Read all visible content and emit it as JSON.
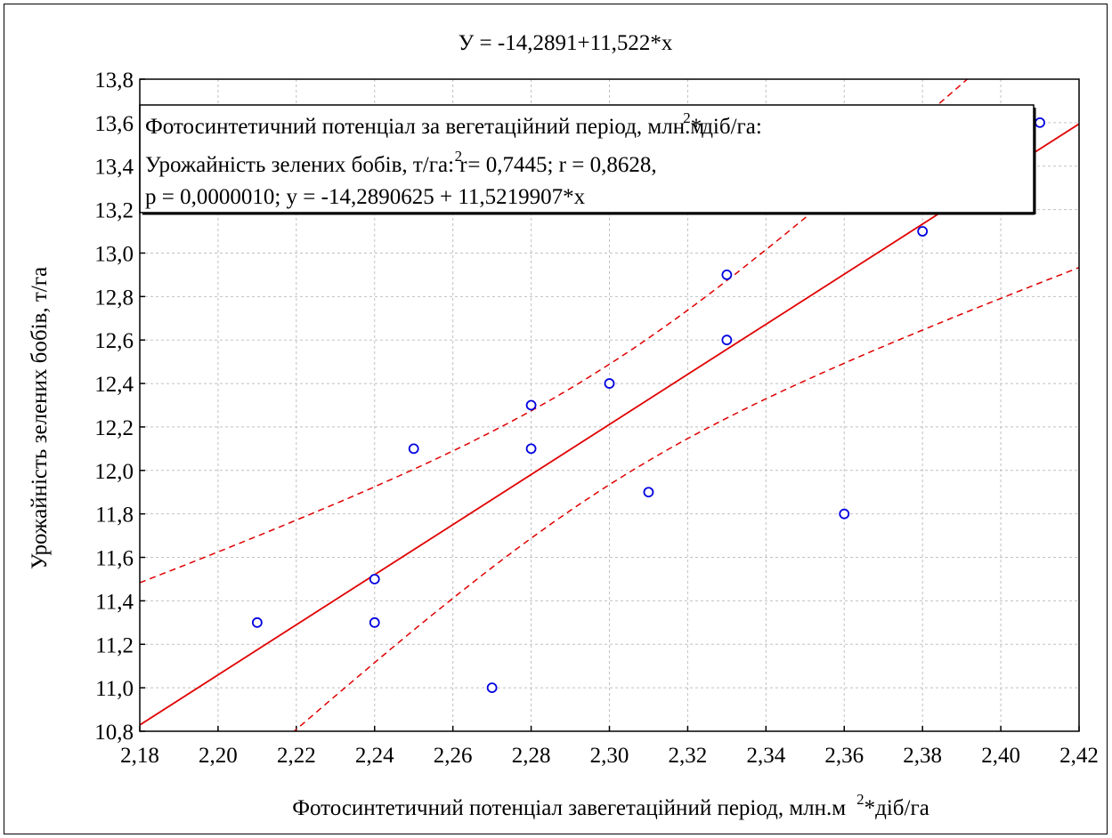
{
  "chart_data": {
    "type": "scatter",
    "title": "У = -14,2891+11,522*х",
    "xlabel": "Фотосинтетичний потенціал завегетаційний період, млн.м",
    "xlabel_sup": "2",
    "xlabel_tail": "*діб/га",
    "ylabel": "Урожайність зелених бобів, т/га",
    "xlim": [
      2.18,
      2.42
    ],
    "ylim": [
      10.8,
      13.8
    ],
    "x_ticks": [
      "2,18",
      "2,20",
      "2,22",
      "2,24",
      "2,26",
      "2,28",
      "2,30",
      "2,32",
      "2,34",
      "2,36",
      "2,38",
      "2,40",
      "2,42"
    ],
    "y_ticks": [
      "10,8",
      "11,0",
      "11,2",
      "11,4",
      "11,6",
      "11,8",
      "12,0",
      "12,2",
      "12,4",
      "12,6",
      "12,8",
      "13,0",
      "13,2",
      "13,4",
      "13,6",
      "13,8"
    ],
    "grid": true,
    "regression": {
      "intercept": -14.2890625,
      "slope": 11.5219907
    },
    "confidence_band": true,
    "points": [
      {
        "x": 2.21,
        "y": 11.3
      },
      {
        "x": 2.24,
        "y": 11.5
      },
      {
        "x": 2.24,
        "y": 11.3
      },
      {
        "x": 2.25,
        "y": 12.1
      },
      {
        "x": 2.27,
        "y": 11.0
      },
      {
        "x": 2.28,
        "y": 12.3
      },
      {
        "x": 2.28,
        "y": 12.1
      },
      {
        "x": 2.3,
        "y": 12.4
      },
      {
        "x": 2.31,
        "y": 11.9
      },
      {
        "x": 2.33,
        "y": 12.9
      },
      {
        "x": 2.33,
        "y": 12.6
      },
      {
        "x": 2.36,
        "y": 11.8
      },
      {
        "x": 2.38,
        "y": 13.1
      },
      {
        "x": 2.41,
        "y": 13.6
      }
    ],
    "legend": {
      "line1": "Фотосинтетичний потенціал за вегетаційний період, млн.м",
      "line1_sup": "2",
      "line1_tail": "*діб/га:",
      "line2_a": "Урожайність зелених бобів, т/га:  r",
      "line2_sup": "2",
      "line2_b": " = 0,7445;  r = 0,8628,",
      "line3": "p = 0,0000010;  y = -14,2890625 + 11,5219907*x"
    },
    "colors": {
      "line": "#e00000",
      "points": "#0000e0",
      "grid": "#c0c0c0",
      "axis": "#000000"
    }
  }
}
